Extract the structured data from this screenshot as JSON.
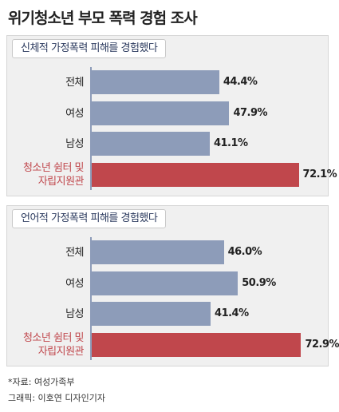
{
  "title": "위기청소년 부모 폭력 경험 조사",
  "chart_data": [
    {
      "type": "bar",
      "orientation": "horizontal",
      "subtitle": "신체적 가정폭력 피해를 경험했다",
      "categories": [
        "전체",
        "여성",
        "남성",
        "청소년 쉼터 및\n자립지원관"
      ],
      "values": [
        44.4,
        47.9,
        41.1,
        72.1
      ],
      "value_labels": [
        "44.4%",
        "47.9%",
        "41.1%",
        "72.1%"
      ],
      "colors": [
        "#8d9cb9",
        "#8d9cb9",
        "#8d9cb9",
        "#c0474c"
      ]
    },
    {
      "type": "bar",
      "orientation": "horizontal",
      "subtitle": "언어적 가정폭력 피해를 경험했다",
      "categories": [
        "전체",
        "여성",
        "남성",
        "청소년 쉼터 및\n자립지원관"
      ],
      "values": [
        46.0,
        50.9,
        41.4,
        72.9
      ],
      "value_labels": [
        "46.0%",
        "50.9%",
        "41.4%",
        "72.9%"
      ],
      "colors": [
        "#8d9cb9",
        "#8d9cb9",
        "#8d9cb9",
        "#c0474c"
      ]
    }
  ],
  "source": "*자료: 여성가족부",
  "credit": "그래픽: 이호연 디자인기자"
}
